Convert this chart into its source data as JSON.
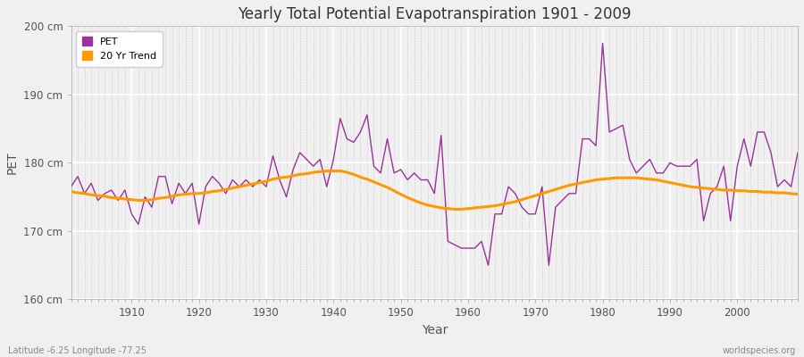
{
  "title": "Yearly Total Potential Evapotranspiration 1901 - 2009",
  "xlabel": "Year",
  "ylabel": "PET",
  "bottom_left_label": "Latitude -6.25 Longitude -77.25",
  "bottom_right_label": "worldspecies.org",
  "pet_color": "#993399",
  "trend_color": "#ff9900",
  "background_color": "#f0f0f0",
  "plot_bg_color": "#f0f0f0",
  "grid_color": "#ffffff",
  "minor_grid_color": "#dddddd",
  "ylim": [
    160,
    200
  ],
  "yticks": [
    160,
    170,
    180,
    190,
    200
  ],
  "ytick_labels": [
    "160 cm",
    "170 cm",
    "180 cm",
    "190 cm",
    "200 cm"
  ],
  "years": [
    1901,
    1902,
    1903,
    1904,
    1905,
    1906,
    1907,
    1908,
    1909,
    1910,
    1911,
    1912,
    1913,
    1914,
    1915,
    1916,
    1917,
    1918,
    1919,
    1920,
    1921,
    1922,
    1923,
    1924,
    1925,
    1926,
    1927,
    1928,
    1929,
    1930,
    1931,
    1932,
    1933,
    1934,
    1935,
    1936,
    1937,
    1938,
    1939,
    1940,
    1941,
    1942,
    1943,
    1944,
    1945,
    1946,
    1947,
    1948,
    1949,
    1950,
    1951,
    1952,
    1953,
    1954,
    1955,
    1956,
    1957,
    1958,
    1959,
    1960,
    1961,
    1962,
    1963,
    1964,
    1965,
    1966,
    1967,
    1968,
    1969,
    1970,
    1971,
    1972,
    1973,
    1974,
    1975,
    1976,
    1977,
    1978,
    1979,
    1980,
    1981,
    1982,
    1983,
    1984,
    1985,
    1986,
    1987,
    1988,
    1989,
    1990,
    1991,
    1992,
    1993,
    1994,
    1995,
    1996,
    1997,
    1998,
    1999,
    2000,
    2001,
    2002,
    2003,
    2004,
    2005,
    2006,
    2007,
    2008,
    2009
  ],
  "pet_values": [
    176.5,
    178.0,
    175.5,
    177.0,
    174.5,
    175.5,
    176.0,
    174.5,
    176.0,
    172.5,
    171.0,
    175.0,
    173.5,
    178.0,
    178.0,
    174.0,
    177.0,
    175.5,
    177.0,
    171.0,
    176.5,
    178.0,
    177.0,
    175.5,
    177.5,
    176.5,
    177.5,
    176.5,
    177.5,
    176.5,
    181.0,
    177.5,
    175.0,
    179.0,
    181.5,
    180.5,
    179.5,
    180.5,
    176.5,
    180.5,
    186.5,
    183.5,
    183.0,
    184.5,
    187.0,
    179.5,
    178.5,
    183.5,
    178.5,
    179.0,
    177.5,
    178.5,
    177.5,
    177.5,
    175.5,
    184.0,
    168.5,
    168.0,
    167.5,
    167.5,
    167.5,
    168.5,
    165.0,
    172.5,
    172.5,
    176.5,
    175.5,
    173.5,
    172.5,
    172.5,
    176.5,
    165.0,
    173.5,
    174.5,
    175.5,
    175.5,
    183.5,
    183.5,
    182.5,
    197.5,
    184.5,
    185.0,
    185.5,
    180.5,
    178.5,
    179.5,
    180.5,
    178.5,
    178.5,
    180.0,
    179.5,
    179.5,
    179.5,
    180.5,
    171.5,
    175.5,
    176.5,
    179.5,
    171.5,
    179.5,
    183.5,
    179.5,
    184.5,
    184.5,
    181.5,
    176.5,
    177.5,
    176.5,
    181.5
  ],
  "trend_values": [
    175.8,
    175.6,
    175.5,
    175.3,
    175.2,
    175.1,
    174.9,
    174.8,
    174.7,
    174.6,
    174.5,
    174.5,
    174.6,
    174.8,
    174.9,
    175.1,
    175.3,
    175.4,
    175.5,
    175.5,
    175.6,
    175.8,
    175.9,
    176.1,
    176.3,
    176.5,
    176.7,
    176.9,
    177.1,
    177.3,
    177.6,
    177.8,
    177.9,
    178.1,
    178.3,
    178.4,
    178.6,
    178.7,
    178.8,
    178.8,
    178.8,
    178.6,
    178.3,
    177.9,
    177.6,
    177.2,
    176.8,
    176.4,
    175.9,
    175.4,
    174.9,
    174.5,
    174.1,
    173.8,
    173.6,
    173.4,
    173.3,
    173.2,
    173.2,
    173.3,
    173.4,
    173.5,
    173.6,
    173.7,
    173.9,
    174.1,
    174.3,
    174.6,
    174.9,
    175.2,
    175.5,
    175.8,
    176.1,
    176.4,
    176.7,
    176.9,
    177.1,
    177.3,
    177.5,
    177.6,
    177.7,
    177.8,
    177.8,
    177.8,
    177.8,
    177.7,
    177.6,
    177.5,
    177.3,
    177.1,
    176.9,
    176.7,
    176.5,
    176.4,
    176.3,
    176.2,
    176.1,
    176.0,
    176.0,
    175.9,
    175.9,
    175.8,
    175.8,
    175.7,
    175.7,
    175.6,
    175.6,
    175.5,
    175.4
  ]
}
